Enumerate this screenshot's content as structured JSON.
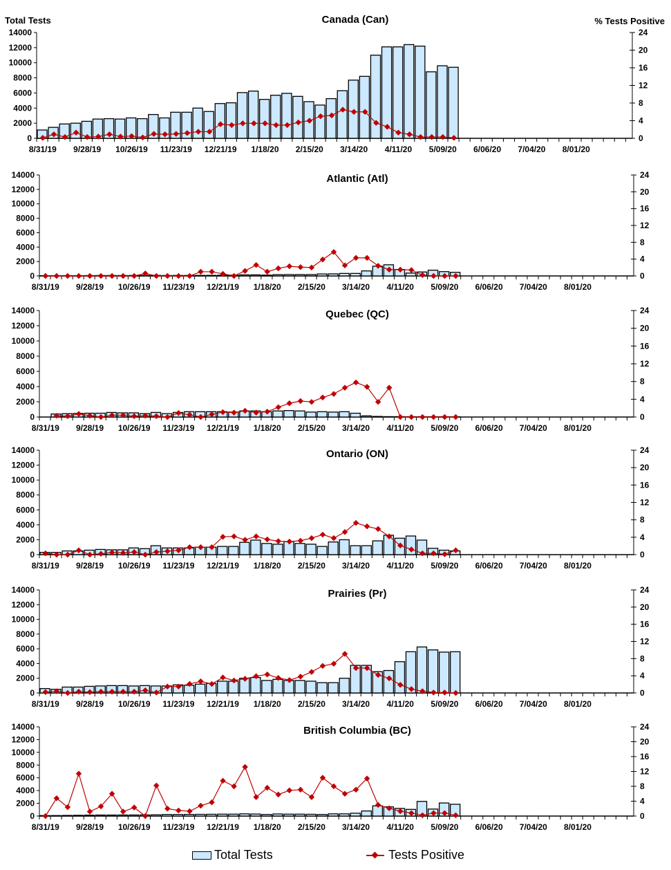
{
  "chart_data": {
    "type": "bar",
    "left_axis_label": "Total Tests",
    "right_axis_label": "% Tests Positive",
    "left_ticks": [
      "0",
      "2000",
      "4000",
      "6000",
      "8000",
      "10000",
      "12000",
      "14000"
    ],
    "right_ticks": [
      "0",
      "4",
      "8",
      "12",
      "16",
      "20",
      "24"
    ],
    "ylim_left": [
      0,
      14000
    ],
    "ylim_right": [
      0,
      24
    ],
    "x_tick_labels": [
      "8/31/19",
      "9/28/19",
      "10/26/19",
      "11/23/19",
      "12/21/19",
      "1/18/20",
      "2/15/20",
      "3/14/20",
      "4/11/20",
      "5/09/20",
      "6/06/20",
      "7/04/20",
      "8/01/20"
    ],
    "legend": {
      "placement": "bottom",
      "bars": "Total Tests",
      "line": "Tests Positive"
    },
    "colors": {
      "bar_fill": "#cce9ff",
      "bar_stroke": "#000000",
      "line": "#c00000"
    },
    "panels": [
      {
        "title": "Canada (Can)",
        "start_week": 0,
        "total_tests": [
          1100,
          1450,
          1900,
          2000,
          2250,
          2550,
          2600,
          2550,
          2700,
          2600,
          3150,
          2700,
          3450,
          3450,
          4000,
          3550,
          4600,
          4700,
          6050,
          6250,
          5150,
          5700,
          5950,
          5550,
          4850,
          4400,
          5250,
          6300,
          7700,
          8200,
          11000,
          12100,
          12100,
          12400,
          12200,
          8800,
          9600,
          9400
        ],
        "pct_positive": [
          0.1,
          0.9,
          0.3,
          1.3,
          0.3,
          0.4,
          0.9,
          0.4,
          0.5,
          0.2,
          1.0,
          0.9,
          1.0,
          1.2,
          1.5,
          1.5,
          3.2,
          3.0,
          3.4,
          3.4,
          3.4,
          3.0,
          3.0,
          3.6,
          4.0,
          5.0,
          5.2,
          6.5,
          6.0,
          6.0,
          3.5,
          2.6,
          1.3,
          0.9,
          0.3,
          0.3,
          0.3,
          0.1
        ]
      },
      {
        "title": "Atlantic (Atl)",
        "start_week": 0,
        "total_tests": [
          30,
          30,
          40,
          40,
          50,
          60,
          60,
          60,
          70,
          70,
          80,
          60,
          70,
          70,
          80,
          80,
          100,
          110,
          150,
          150,
          120,
          180,
          190,
          190,
          190,
          280,
          290,
          350,
          350,
          700,
          1350,
          1550,
          900,
          400,
          550,
          800,
          600,
          500
        ],
        "pct_positive": [
          0,
          0,
          0,
          0,
          0,
          0,
          0,
          0,
          0,
          0.6,
          0,
          0,
          0,
          0,
          1.0,
          1.0,
          0.5,
          0,
          1.2,
          2.6,
          1.0,
          1.8,
          2.3,
          2.1,
          2.0,
          3.9,
          5.7,
          2.5,
          4.3,
          4.3,
          2.4,
          1.5,
          1.5,
          1.4,
          0.2,
          0,
          0,
          0
        ]
      },
      {
        "title": "Quebec (QC)",
        "start_week": 1,
        "total_tests": [
          400,
          450,
          480,
          500,
          500,
          600,
          550,
          550,
          450,
          600,
          450,
          600,
          700,
          700,
          700,
          700,
          650,
          800,
          800,
          700,
          800,
          850,
          800,
          650,
          700,
          650,
          700,
          500,
          150,
          80,
          50,
          50,
          40,
          40,
          40,
          40,
          30
        ],
        "pct_positive": [
          0.3,
          0.2,
          0.7,
          0.3,
          0,
          0.4,
          0.4,
          0.2,
          0.3,
          0.2,
          0,
          0.9,
          0.5,
          0,
          0.6,
          1.1,
          1.0,
          1.4,
          1.0,
          1.2,
          2.2,
          3.1,
          3.6,
          3.4,
          4.4,
          5.2,
          6.6,
          7.8,
          6.8,
          3.4,
          6.6,
          0,
          0,
          0,
          0,
          0,
          0
        ]
      },
      {
        "title": "Ontario (ON)",
        "start_week": 0,
        "total_tests": [
          300,
          300,
          500,
          500,
          600,
          700,
          650,
          650,
          900,
          800,
          1200,
          900,
          900,
          900,
          1000,
          1000,
          1100,
          1100,
          1650,
          1950,
          1500,
          1400,
          1750,
          1500,
          1400,
          1100,
          1700,
          2000,
          1200,
          1200,
          1850,
          2600,
          2200,
          2500,
          1950,
          850,
          600,
          500
        ],
        "pct_positive": [
          0.3,
          0,
          0,
          1.0,
          0,
          0.2,
          0.5,
          0.4,
          0.6,
          0,
          0.6,
          0.8,
          1.0,
          1.7,
          1.7,
          1.7,
          4.1,
          4.2,
          3.4,
          4.2,
          3.5,
          3.1,
          3.0,
          3.2,
          3.8,
          4.6,
          3.8,
          5.2,
          7.3,
          6.5,
          5.9,
          4.2,
          2.1,
          1.2,
          0.3,
          0.3,
          0.1,
          1.0
        ]
      },
      {
        "title": "Prairies (Pr)",
        "start_week": 0,
        "total_tests": [
          600,
          500,
          800,
          800,
          900,
          950,
          1000,
          1000,
          950,
          1000,
          950,
          950,
          1100,
          1050,
          1200,
          1300,
          1600,
          1600,
          2000,
          2100,
          1700,
          1850,
          1700,
          1700,
          1600,
          1400,
          1400,
          2000,
          3750,
          3750,
          2900,
          3050,
          4250,
          5600,
          6250,
          5850,
          5550,
          5600
        ],
        "pct_positive": [
          0.2,
          0.4,
          0,
          0.3,
          0.2,
          0.3,
          0.3,
          0.3,
          0.3,
          0.6,
          0.1,
          1.5,
          1.5,
          2.1,
          2.7,
          2.1,
          3.6,
          2.9,
          3.3,
          3.9,
          4.3,
          3.5,
          3.0,
          3.8,
          4.9,
          6.3,
          6.8,
          9.1,
          5.8,
          5.8,
          4.2,
          3.4,
          1.9,
          0.9,
          0.4,
          0.1,
          0.1,
          0
        ]
      },
      {
        "title": "British Columbia (BC)",
        "start_week": 0,
        "total_tests": [
          80,
          80,
          100,
          120,
          150,
          160,
          160,
          170,
          170,
          180,
          200,
          250,
          250,
          260,
          270,
          280,
          300,
          300,
          350,
          320,
          250,
          330,
          300,
          300,
          280,
          250,
          350,
          350,
          450,
          800,
          1600,
          1450,
          1200,
          1050,
          2300,
          1100,
          2050,
          1850
        ],
        "pct_positive": [
          0,
          4.8,
          2.4,
          11.4,
          1.2,
          2.6,
          6.0,
          1.2,
          2.3,
          0,
          8.2,
          2.0,
          1.5,
          1.3,
          2.8,
          3.7,
          9.5,
          8.0,
          13.2,
          5.1,
          7.6,
          5.8,
          6.9,
          7.1,
          5.1,
          10.3,
          8.0,
          6.0,
          7.1,
          10.1,
          3.0,
          2.1,
          1.3,
          0.8,
          0.2,
          0.8,
          0.8,
          0.2
        ]
      }
    ]
  }
}
